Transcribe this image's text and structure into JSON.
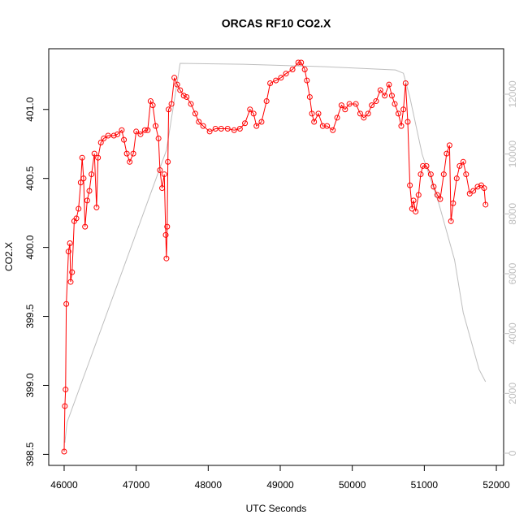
{
  "chart_data": {
    "type": "line",
    "title": "ORCAS RF10 CO2.X",
    "x_label": "UTC Seconds",
    "y_label": "CO2.X",
    "xlim": [
      45786,
      52101
    ],
    "xticks": [
      46000,
      47000,
      48000,
      49000,
      50000,
      51000,
      52000
    ],
    "ylim": [
      398.42,
      401.44
    ],
    "yticks": [
      398.5,
      {
        "value": 399,
        "label": "399.0"
      },
      399.5,
      {
        "value": 400,
        "label": "400.0"
      },
      400.5,
      {
        "value": 401,
        "label": "401.0"
      }
    ],
    "y2lim": [
      -407,
      13520
    ],
    "y2ticks": [
      0,
      2000,
      4000,
      6000,
      8000,
      10000,
      12000
    ],
    "y2_color": "#bebebe",
    "series": [
      {
        "color": "#ff0000",
        "marker": "circle",
        "x": [
          46000,
          46010,
          46020,
          46030,
          46060,
          46080,
          46090,
          46110,
          46140,
          46170,
          46200,
          46230,
          46250,
          46270,
          46290,
          46320,
          46350,
          46380,
          46420,
          46450,
          46470,
          46510,
          46550,
          46610,
          46690,
          46740,
          46800,
          46830,
          46870,
          46910,
          46960,
          47000,
          47060,
          47120,
          47160,
          47200,
          47230,
          47270,
          47310,
          47330,
          47360,
          47390,
          47410,
          47420,
          47430,
          47440,
          47450,
          47490,
          47530,
          47570,
          47610,
          47660,
          47700,
          47760,
          47820,
          47870,
          47930,
          48020,
          48100,
          48180,
          48270,
          48360,
          48440,
          48510,
          48580,
          48630,
          48670,
          48740,
          48810,
          48860,
          48940,
          49010,
          49080,
          49170,
          49250,
          49290,
          49340,
          49370,
          49410,
          49440,
          49470,
          49530,
          49590,
          49650,
          49730,
          49790,
          49850,
          49900,
          49960,
          50050,
          50110,
          50160,
          50220,
          50270,
          50330,
          50390,
          50450,
          50510,
          50550,
          50590,
          50640,
          50680,
          50710,
          50740,
          50770,
          50800,
          50830,
          50850,
          50880,
          50920,
          50950,
          50980,
          51030,
          51090,
          51130,
          51180,
          51220,
          51270,
          51310,
          51350,
          51370,
          51400,
          51450,
          51490,
          51540,
          51580,
          51630,
          51680,
          51740,
          51790,
          51830,
          51850
        ],
        "values": [
          398.52,
          398.85,
          398.97,
          399.59,
          399.97,
          400.03,
          399.75,
          399.82,
          400.19,
          400.21,
          400.28,
          400.47,
          400.65,
          400.5,
          400.15,
          400.34,
          400.41,
          400.53,
          400.68,
          400.29,
          400.65,
          400.76,
          400.79,
          400.81,
          400.81,
          400.82,
          400.85,
          400.78,
          400.68,
          400.62,
          400.68,
          400.84,
          400.82,
          400.85,
          400.85,
          401.06,
          401.03,
          400.88,
          400.79,
          400.56,
          400.43,
          400.53,
          400.09,
          399.92,
          400.15,
          400.62,
          401.0,
          401.04,
          401.23,
          401.18,
          401.14,
          401.1,
          401.09,
          401.04,
          400.97,
          400.91,
          400.88,
          400.84,
          400.86,
          400.86,
          400.86,
          400.85,
          400.86,
          400.9,
          401.0,
          400.97,
          400.88,
          400.91,
          401.06,
          401.19,
          401.21,
          401.23,
          401.26,
          401.29,
          401.34,
          401.34,
          401.29,
          401.21,
          401.09,
          400.97,
          400.91,
          400.97,
          400.88,
          400.88,
          400.85,
          400.94,
          401.03,
          401.0,
          401.04,
          401.04,
          400.97,
          400.94,
          400.97,
          401.03,
          401.06,
          401.14,
          401.1,
          401.18,
          401.1,
          401.04,
          400.97,
          400.88,
          401.0,
          401.19,
          400.91,
          400.45,
          400.28,
          400.34,
          400.26,
          400.38,
          400.53,
          400.59,
          400.59,
          400.53,
          400.44,
          400.38,
          400.35,
          400.53,
          400.68,
          400.74,
          400.19,
          400.32,
          400.5,
          400.59,
          400.62,
          400.53,
          400.39,
          400.41,
          400.44,
          400.45,
          400.43,
          400.31
        ]
      },
      {
        "color": "#bebebe",
        "axis": "y2",
        "x": [
          46010,
          46040,
          47420,
          47610,
          48490,
          49620,
          50600,
          50710,
          50800,
          50970,
          51200,
          51420,
          51540,
          51650,
          51760,
          51850
        ],
        "values": [
          353,
          1030,
          10127,
          13030,
          13000,
          12920,
          12810,
          12700,
          11890,
          9990,
          8360,
          6460,
          4700,
          3750,
          2800,
          2390
        ]
      }
    ]
  }
}
